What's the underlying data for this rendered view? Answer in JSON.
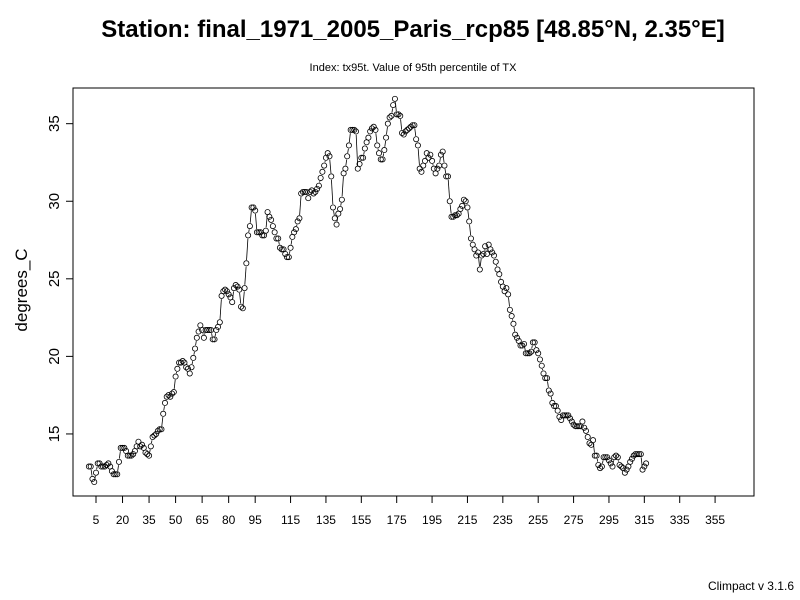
{
  "chart_data": {
    "type": "scatter",
    "title": "Station: final_1971_2005_Paris_rcp85 [48.85°N, 2.35°E]",
    "subtitle": "Index: tx95t. Value of 95th percentile of TX",
    "ylabel": "degrees_C",
    "xlabel": "",
    "xlim": [
      -8,
      377
    ],
    "ylim": [
      11,
      37.3
    ],
    "xticks": [
      5,
      20,
      35,
      50,
      65,
      80,
      95,
      115,
      135,
      155,
      175,
      195,
      215,
      235,
      255,
      275,
      295,
      315,
      335,
      355
    ],
    "xtick_labels": [
      "5",
      "20",
      "35",
      "50",
      "65",
      "80",
      "95",
      "115",
      "135",
      "155",
      "175",
      "195",
      "215",
      "235",
      "255",
      "275",
      "295",
      "315",
      "335",
      "355"
    ],
    "yticks": [
      15,
      20,
      25,
      30,
      35
    ],
    "ytick_labels": [
      "15",
      "20",
      "25",
      "30",
      "35"
    ],
    "grid": false,
    "marker": "open-circle",
    "connected_with_line": true,
    "series": [
      {
        "x_start": 1,
        "x_step": 1,
        "values": [
          12.9,
          12.9,
          12.1,
          11.9,
          12.5,
          13.1,
          13.1,
          12.9,
          12.9,
          12.9,
          13.0,
          13.1,
          12.9,
          12.6,
          12.4,
          12.4,
          12.4,
          13.2,
          14.1,
          14.1,
          14.1,
          13.9,
          13.6,
          13.6,
          13.6,
          13.7,
          13.9,
          14.2,
          14.5,
          14.2,
          14.3,
          14.1,
          13.8,
          13.7,
          13.6,
          14.2,
          14.8,
          14.9,
          15.0,
          15.2,
          15.3,
          15.3,
          16.3,
          17.0,
          17.4,
          17.5,
          17.4,
          17.6,
          17.7,
          18.7,
          19.2,
          19.6,
          19.6,
          19.7,
          19.6,
          19.3,
          19.2,
          18.9,
          19.3,
          19.9,
          20.5,
          21.2,
          21.6,
          22.0,
          21.7,
          21.2,
          21.7,
          21.7,
          21.7,
          21.7,
          21.1,
          21.1,
          21.7,
          21.9,
          22.2,
          23.9,
          24.2,
          24.3,
          24.2,
          24.0,
          23.8,
          23.5,
          24.4,
          24.6,
          24.5,
          24.3,
          23.2,
          23.1,
          24.4,
          26.0,
          27.8,
          28.4,
          29.6,
          29.6,
          29.4,
          28.0,
          28.0,
          28.0,
          27.8,
          27.8,
          28.1,
          29.3,
          29.0,
          28.8,
          28.4,
          28.0,
          27.6,
          27.6,
          27.0,
          26.9,
          26.9,
          26.6,
          26.4,
          26.4,
          27.0,
          27.7,
          28.0,
          28.2,
          28.7,
          28.9,
          30.5,
          30.6,
          30.6,
          30.6,
          30.2,
          30.6,
          30.7,
          30.5,
          30.6,
          30.8,
          31.0,
          31.5,
          31.9,
          32.3,
          32.8,
          33.1,
          32.9,
          31.6,
          29.6,
          28.9,
          28.5,
          29.2,
          29.5,
          30.1,
          31.8,
          32.1,
          32.9,
          33.6,
          34.6,
          34.6,
          34.6,
          34.5,
          32.1,
          32.4,
          32.8,
          32.8,
          33.4,
          33.8,
          34.1,
          34.5,
          34.7,
          34.8,
          34.6,
          33.6,
          33.1,
          32.7,
          32.7,
          33.3,
          34.1,
          35.0,
          35.4,
          35.5,
          36.2,
          36.6,
          35.6,
          35.6,
          35.5,
          34.4,
          34.3,
          34.5,
          34.6,
          34.7,
          34.8,
          34.9,
          34.9,
          34.0,
          33.6,
          32.1,
          31.9,
          32.3,
          32.6,
          33.1,
          32.8,
          33.0,
          32.6,
          32.1,
          31.8,
          32.1,
          32.3,
          33.0,
          33.2,
          32.3,
          31.6,
          31.6,
          30.0,
          29.0,
          29.0,
          29.1,
          29.1,
          29.2,
          29.5,
          29.7,
          30.1,
          30.0,
          29.6,
          28.7,
          27.6,
          27.2,
          26.9,
          26.5,
          26.7,
          25.6,
          26.5,
          26.6,
          27.1,
          26.6,
          27.2,
          26.9,
          26.7,
          26.5,
          26.1,
          25.6,
          25.3,
          24.8,
          24.5,
          24.2,
          24.4,
          24.0,
          23.0,
          22.6,
          22.1,
          21.4,
          21.2,
          21.0,
          20.7,
          20.7,
          20.8,
          20.2,
          20.2,
          20.2,
          20.3,
          20.9,
          20.9,
          20.4,
          20.2,
          19.8,
          19.4,
          18.9,
          18.6,
          18.6,
          17.8,
          17.6,
          17.0,
          16.8,
          16.8,
          16.5,
          16.1,
          15.9,
          16.2,
          16.2,
          16.2,
          16.2,
          16.0,
          15.8,
          15.6,
          15.5,
          15.5,
          15.5,
          15.5,
          15.8,
          15.4,
          15.2,
          14.8,
          14.4,
          14.3,
          14.6,
          13.6,
          13.6,
          13.0,
          12.8,
          12.9,
          13.5,
          13.5,
          13.5,
          13.3,
          13.1,
          12.9,
          13.5,
          13.6,
          13.5,
          13.0,
          12.9,
          12.8,
          12.5,
          12.7,
          12.9,
          13.2,
          13.4,
          13.6,
          13.7,
          13.7,
          13.7,
          13.7,
          12.7,
          12.9,
          13.1
        ]
      }
    ]
  },
  "footer": {
    "version_text": "Climpact v 3.1.6"
  }
}
